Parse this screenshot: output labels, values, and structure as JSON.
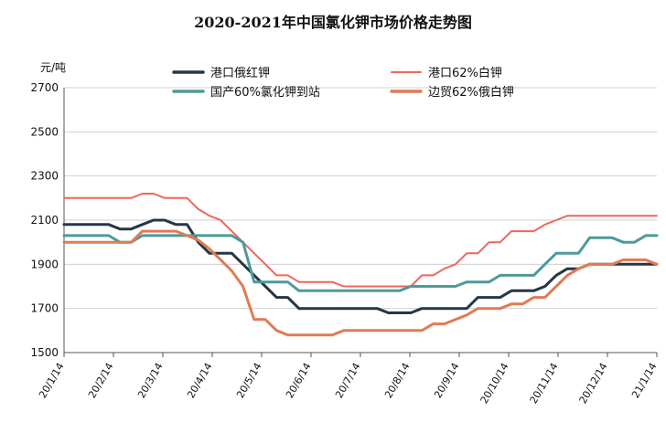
{
  "chart_data": {
    "type": "line",
    "title": "2020-2021年中国氯化钾市场价格走势图",
    "ylabel": "元/吨",
    "ylim": [
      1500,
      2700
    ],
    "yticks": [
      1500,
      1700,
      1900,
      2100,
      2300,
      2500,
      2700
    ],
    "x": [
      "20/1/14",
      "20/1/21",
      "20/1/28",
      "20/2/4",
      "20/2/11",
      "20/2/18",
      "20/2/25",
      "20/3/3",
      "20/3/10",
      "20/3/17",
      "20/3/24",
      "20/3/31",
      "20/4/7",
      "20/4/14",
      "20/4/21",
      "20/4/28",
      "20/5/5",
      "20/5/12",
      "20/5/19",
      "20/5/26",
      "20/6/2",
      "20/6/9",
      "20/6/16",
      "20/6/23",
      "20/6/30",
      "20/7/7",
      "20/7/14",
      "20/7/21",
      "20/7/28",
      "20/8/4",
      "20/8/11",
      "20/8/18",
      "20/8/25",
      "20/9/1",
      "20/9/8",
      "20/9/15",
      "20/9/22",
      "20/9/29",
      "20/10/6",
      "20/10/13",
      "20/10/20",
      "20/10/27",
      "20/11/3",
      "20/11/10",
      "20/11/17",
      "20/11/24",
      "20/12/1",
      "20/12/8",
      "20/12/15",
      "20/12/22",
      "20/12/29",
      "21/1/5",
      "21/1/12",
      "21/1/14"
    ],
    "xtick_labels": [
      "20/1/14",
      "20/2/14",
      "20/3/14",
      "20/4/14",
      "20/5/14",
      "20/6/14",
      "20/7/14",
      "20/8/14",
      "20/9/14",
      "20/10/14",
      "20/11/14",
      "20/12/14",
      "21/1/14"
    ],
    "legend_position": "top",
    "grid": "horizontal",
    "series": [
      {
        "name": "港口俄红钾",
        "color": "#253746",
        "values": [
          2080,
          2080,
          2080,
          2080,
          2080,
          2060,
          2060,
          2080,
          2100,
          2100,
          2080,
          2080,
          2000,
          1950,
          1950,
          1950,
          1900,
          1850,
          1800,
          1750,
          1750,
          1700,
          1700,
          1700,
          1700,
          1700,
          1700,
          1700,
          1700,
          1680,
          1680,
          1680,
          1700,
          1700,
          1700,
          1700,
          1700,
          1750,
          1750,
          1750,
          1780,
          1780,
          1780,
          1800,
          1850,
          1880,
          1880,
          1900,
          1900,
          1900,
          1900,
          1900,
          1900,
          1900
        ]
      },
      {
        "name": "港口62%白钾",
        "color": "#F0655A",
        "values": [
          2200,
          2200,
          2200,
          2200,
          2200,
          2200,
          2200,
          2220,
          2220,
          2200,
          2200,
          2200,
          2150,
          2120,
          2100,
          2050,
          2000,
          1950,
          1900,
          1850,
          1850,
          1820,
          1820,
          1820,
          1820,
          1800,
          1800,
          1800,
          1800,
          1800,
          1800,
          1800,
          1850,
          1850,
          1880,
          1900,
          1950,
          1950,
          2000,
          2000,
          2050,
          2050,
          2050,
          2080,
          2100,
          2120,
          2120,
          2120,
          2120,
          2120,
          2120,
          2120,
          2120,
          2120
        ]
      },
      {
        "name": "国产60%氯化钾到站",
        "color": "#4E9A9A",
        "values": [
          2030,
          2030,
          2030,
          2030,
          2030,
          2000,
          2000,
          2030,
          2030,
          2030,
          2030,
          2030,
          2030,
          2030,
          2030,
          2030,
          2000,
          1820,
          1820,
          1820,
          1820,
          1780,
          1780,
          1780,
          1780,
          1780,
          1780,
          1780,
          1780,
          1780,
          1780,
          1800,
          1800,
          1800,
          1800,
          1800,
          1820,
          1820,
          1820,
          1850,
          1850,
          1850,
          1850,
          1900,
          1950,
          1950,
          1950,
          2020,
          2020,
          2020,
          2000,
          2000,
          2030,
          2030
        ]
      },
      {
        "name": "边贸62%俄白钾",
        "color": "#E07B54",
        "values": [
          2000,
          2000,
          2000,
          2000,
          2000,
          2000,
          2000,
          2050,
          2050,
          2050,
          2050,
          2030,
          2010,
          1970,
          1920,
          1870,
          1800,
          1650,
          1650,
          1600,
          1580,
          1580,
          1580,
          1580,
          1580,
          1600,
          1600,
          1600,
          1600,
          1600,
          1600,
          1600,
          1600,
          1630,
          1630,
          1650,
          1670,
          1700,
          1700,
          1700,
          1720,
          1720,
          1750,
          1750,
          1800,
          1850,
          1880,
          1900,
          1900,
          1900,
          1920,
          1920,
          1920,
          1900
        ]
      }
    ]
  }
}
